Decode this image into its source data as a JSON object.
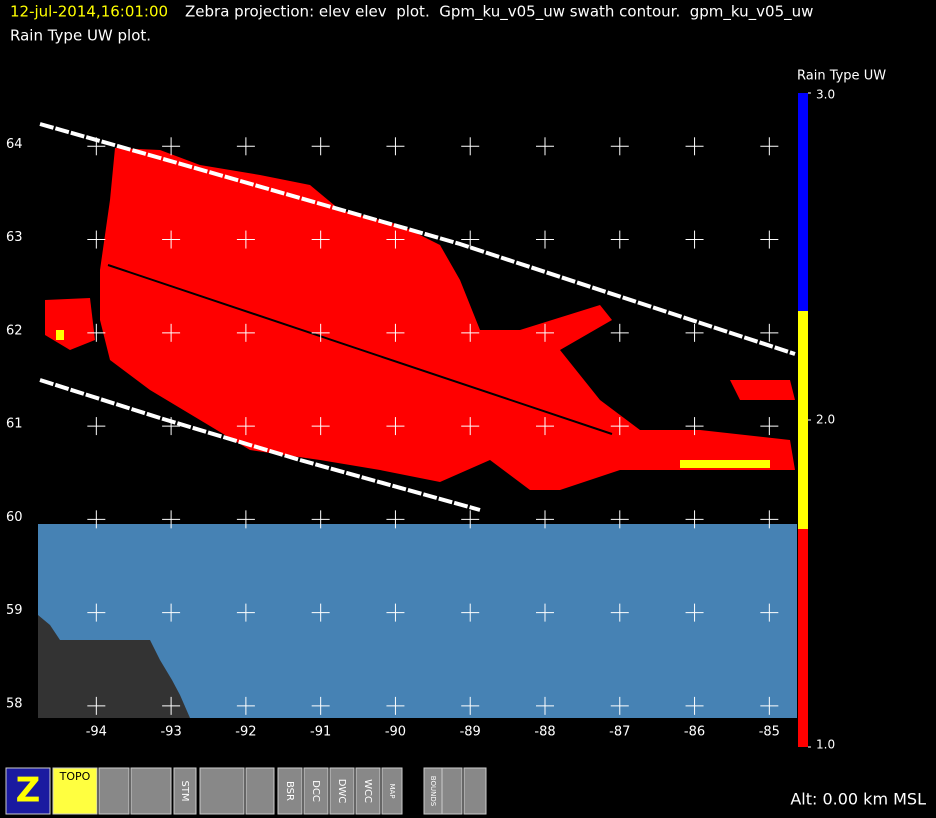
{
  "header": {
    "time": "12-jul-2014,16:01:00",
    "line1": "Zebra projection: elev elev  plot.  Gpm_ku_v05_uw swath contour.  gpm_ku_v05_uw",
    "line2": "Rain Type UW  plot."
  },
  "map": {
    "xlim": [
      -94.78,
      -84.63
    ],
    "ylim": [
      57.87,
      64.55
    ],
    "xticks": [
      -94,
      -93,
      -92,
      -91,
      -90,
      -89,
      -88,
      -87,
      -86,
      -85
    ],
    "yticks": [
      58,
      59,
      60,
      61,
      62,
      63,
      64
    ]
  },
  "colorbar": {
    "title": "Rain Type UW",
    "lim": [
      1,
      3
    ],
    "ticks": [
      {
        "value": 3,
        "label": "3.0"
      },
      {
        "value": 2,
        "label": "2.0"
      },
      {
        "value": 1,
        "label": "1.0"
      }
    ],
    "colors": [
      "#ff0000",
      "#ffff00",
      "#0000ff"
    ]
  },
  "toolbar": [
    "Z",
    "TOPO",
    "STM",
    "BSR",
    "DCC",
    "DWC",
    "WCC",
    "MAP",
    "BOUNDS"
  ],
  "footer": "Alt: 0.00 km MSL"
}
